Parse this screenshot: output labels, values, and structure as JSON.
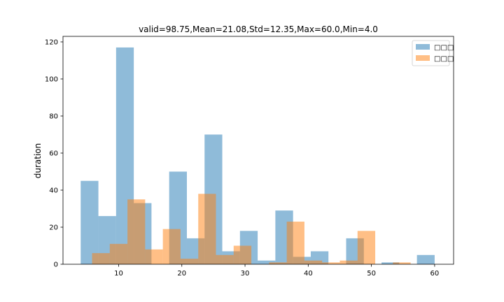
{
  "chart_data": {
    "type": "bar",
    "title": "valid=98.75,Mean=21.08,Std=12.35,Max=60.0,Min=4.0",
    "xlabel": "",
    "ylabel": "duration",
    "xlim": [
      1.2,
      63.0
    ],
    "ylim": [
      0,
      123
    ],
    "xticks": [
      10,
      20,
      30,
      40,
      50,
      60
    ],
    "yticks": [
      0,
      20,
      40,
      60,
      80,
      100,
      120
    ],
    "grid": false,
    "legend_position": "top-right",
    "series": [
      {
        "name": "□□□",
        "color": "#1f77b4",
        "alpha": 0.5,
        "bins": [
          {
            "x0": 4.0,
            "x1": 6.8,
            "value": 45
          },
          {
            "x0": 6.8,
            "x1": 9.6,
            "value": 26
          },
          {
            "x0": 9.6,
            "x1": 12.4,
            "value": 117
          },
          {
            "x0": 12.4,
            "x1": 15.2,
            "value": 33
          },
          {
            "x0": 15.2,
            "x1": 18.0,
            "value": 0
          },
          {
            "x0": 18.0,
            "x1": 20.8,
            "value": 50
          },
          {
            "x0": 20.8,
            "x1": 23.6,
            "value": 14
          },
          {
            "x0": 23.6,
            "x1": 26.4,
            "value": 70
          },
          {
            "x0": 26.4,
            "x1": 29.2,
            "value": 7
          },
          {
            "x0": 29.2,
            "x1": 32.0,
            "value": 18
          },
          {
            "x0": 32.0,
            "x1": 34.8,
            "value": 2
          },
          {
            "x0": 34.8,
            "x1": 37.6,
            "value": 29
          },
          {
            "x0": 37.6,
            "x1": 40.4,
            "value": 4
          },
          {
            "x0": 40.4,
            "x1": 43.2,
            "value": 7
          },
          {
            "x0": 43.2,
            "x1": 46.0,
            "value": 0
          },
          {
            "x0": 46.0,
            "x1": 48.8,
            "value": 14
          },
          {
            "x0": 48.8,
            "x1": 51.6,
            "value": 0
          },
          {
            "x0": 51.6,
            "x1": 54.4,
            "value": 1
          },
          {
            "x0": 54.4,
            "x1": 57.2,
            "value": 0
          },
          {
            "x0": 57.2,
            "x1": 60.0,
            "value": 5
          }
        ]
      },
      {
        "name": "□□□",
        "color": "#ff7f0e",
        "alpha": 0.5,
        "bins": [
          {
            "x0": 5.8,
            "x1": 8.6,
            "value": 6
          },
          {
            "x0": 8.6,
            "x1": 11.4,
            "value": 11
          },
          {
            "x0": 11.4,
            "x1": 14.2,
            "value": 35
          },
          {
            "x0": 14.2,
            "x1": 17.0,
            "value": 8
          },
          {
            "x0": 17.0,
            "x1": 19.8,
            "value": 19
          },
          {
            "x0": 19.8,
            "x1": 22.6,
            "value": 3
          },
          {
            "x0": 22.6,
            "x1": 25.4,
            "value": 38
          },
          {
            "x0": 25.4,
            "x1": 28.2,
            "value": 5
          },
          {
            "x0": 28.2,
            "x1": 31.0,
            "value": 10
          },
          {
            "x0": 31.0,
            "x1": 33.8,
            "value": 0
          },
          {
            "x0": 33.8,
            "x1": 36.6,
            "value": 1
          },
          {
            "x0": 36.6,
            "x1": 39.4,
            "value": 23
          },
          {
            "x0": 39.4,
            "x1": 42.2,
            "value": 2
          },
          {
            "x0": 42.2,
            "x1": 45.0,
            "value": 1
          },
          {
            "x0": 45.0,
            "x1": 47.8,
            "value": 2
          },
          {
            "x0": 47.8,
            "x1": 50.6,
            "value": 18
          },
          {
            "x0": 50.6,
            "x1": 53.4,
            "value": 0
          },
          {
            "x0": 53.4,
            "x1": 56.2,
            "value": 1
          },
          {
            "x0": 56.2,
            "x1": 59.0,
            "value": 0
          },
          {
            "x0": 59.0,
            "x1": 61.8,
            "value": 0
          }
        ]
      }
    ]
  }
}
